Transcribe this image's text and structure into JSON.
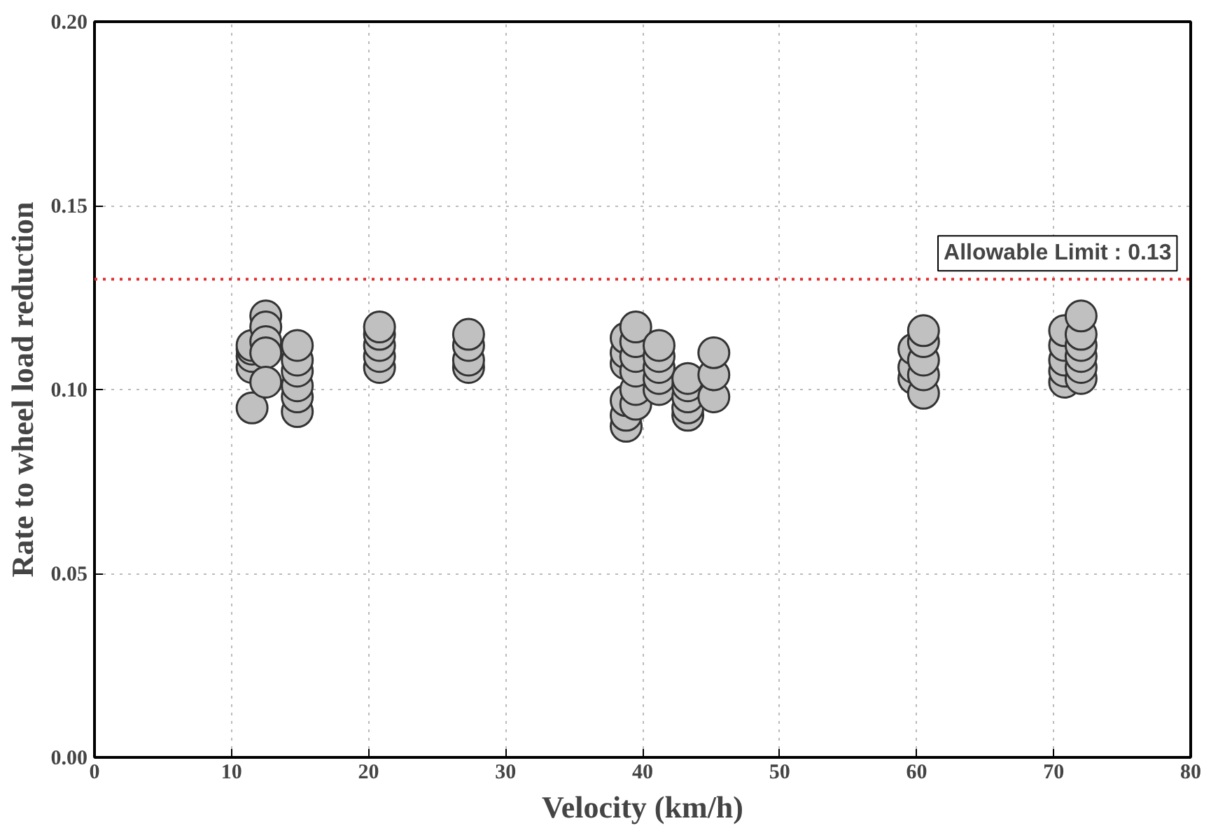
{
  "chart_data": {
    "type": "scatter",
    "xlabel": "Velocity (km/h)",
    "ylabel": "Rate to wheel load reduction",
    "x": [
      11.5,
      11.5,
      11.5,
      11.5,
      11.5,
      12.5,
      12.5,
      12.5,
      12.5,
      12.5,
      14.8,
      14.8,
      14.8,
      14.8,
      14.8,
      14.8,
      20.8,
      20.8,
      20.8,
      20.8,
      20.8,
      27.3,
      27.3,
      27.3,
      27.3,
      38.8,
      38.8,
      38.8,
      38.8,
      38.8,
      38.8,
      39.5,
      39.5,
      39.5,
      39.5,
      39.5,
      39.5,
      41.2,
      41.2,
      41.2,
      41.2,
      41.2,
      43.3,
      43.3,
      43.3,
      43.3,
      43.3,
      45.2,
      45.2,
      45.2,
      59.8,
      59.8,
      59.8,
      60.5,
      60.5,
      60.5,
      60.5,
      60.5,
      70.8,
      70.8,
      70.8,
      70.8,
      70.8,
      72,
      72,
      72,
      72,
      72,
      72
    ],
    "series": [
      {
        "color": "#c0c0c0",
        "values": [
          0.095,
          0.106,
          0.109,
          0.111,
          0.112,
          0.12,
          0.117,
          0.113,
          0.11,
          0.102,
          0.094,
          0.098,
          0.101,
          0.105,
          0.108,
          0.112,
          0.106,
          0.109,
          0.112,
          0.115,
          0.117,
          0.106,
          0.108,
          0.112,
          0.115,
          0.09,
          0.093,
          0.097,
          0.107,
          0.11,
          0.114,
          0.096,
          0.1,
          0.105,
          0.109,
          0.113,
          0.117,
          0.1,
          0.103,
          0.106,
          0.109,
          0.112,
          0.093,
          0.095,
          0.098,
          0.101,
          0.103,
          0.098,
          0.104,
          0.11,
          0.103,
          0.106,
          0.111,
          0.099,
          0.104,
          0.108,
          0.113,
          0.116,
          0.102,
          0.105,
          0.108,
          0.112,
          0.116,
          0.103,
          0.106,
          0.109,
          0.112,
          0.115,
          0.12
        ]
      }
    ],
    "xlim": [
      0,
      80
    ],
    "xticks": [
      0,
      10,
      20,
      30,
      40,
      50,
      60,
      70,
      80
    ],
    "ylim": [
      0,
      0.2
    ],
    "yticks": [
      {
        "value": 0,
        "label": "0.00"
      },
      {
        "value": 0.05,
        "label": "0.05"
      },
      {
        "value": 0.1,
        "label": "0.10"
      },
      {
        "value": 0.15,
        "label": "0.15"
      },
      {
        "value": 0.2,
        "label": "0.20"
      }
    ],
    "ref_lines": [
      {
        "axis": "y",
        "value": 0.13,
        "label": "Allowable Limit : 0.13",
        "color": "#e03030",
        "line_style": "dotted"
      }
    ],
    "grid": true,
    "marker": "circle"
  }
}
